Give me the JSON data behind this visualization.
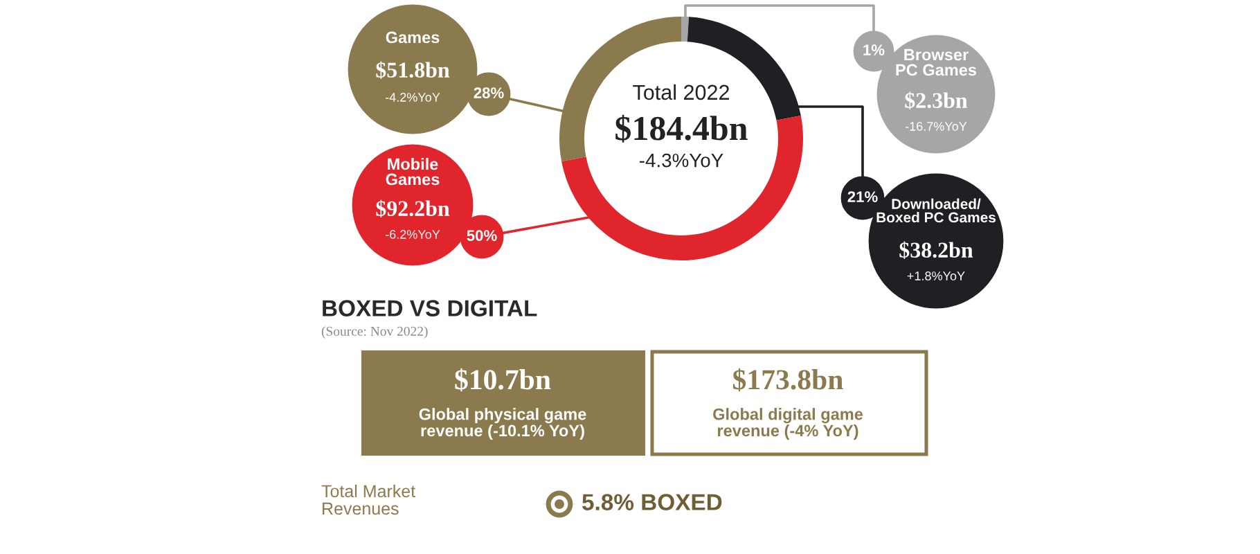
{
  "chart_data": {
    "type": "donut",
    "categories": [
      "Browser\nPC Games",
      "Downloaded/\nBoxed PC Games",
      "Mobile\nGames",
      "Games"
    ],
    "values": [
      1,
      21,
      50,
      28
    ],
    "value_labels": [
      "1%",
      "21%",
      "50%",
      "28%"
    ],
    "colors": [
      "#a6a6a6",
      "#1e2023",
      "#e0252c",
      "#8b7a4e"
    ],
    "annotations": [
      "Total 2022",
      "$184.4bn",
      "-4.3%YoY",
      "$2.3bn",
      "-16.7%YoY",
      "$38.2bn",
      "+1.8%YoY",
      "$92.2bn",
      "-6.2%YoY",
      "$51.8bn",
      "-4.2%YoY",
      "BOXED VS DIGITAL",
      "(Source: Nov 2022)",
      "$10.7bn",
      "Global physical game\nrevenue (-10.1% YoY)",
      "$173.8bn",
      "Global digital game\nrevenue (-4% YoY)",
      "Total Market\nRevenues",
      "5.8% BOXED"
    ]
  }
}
